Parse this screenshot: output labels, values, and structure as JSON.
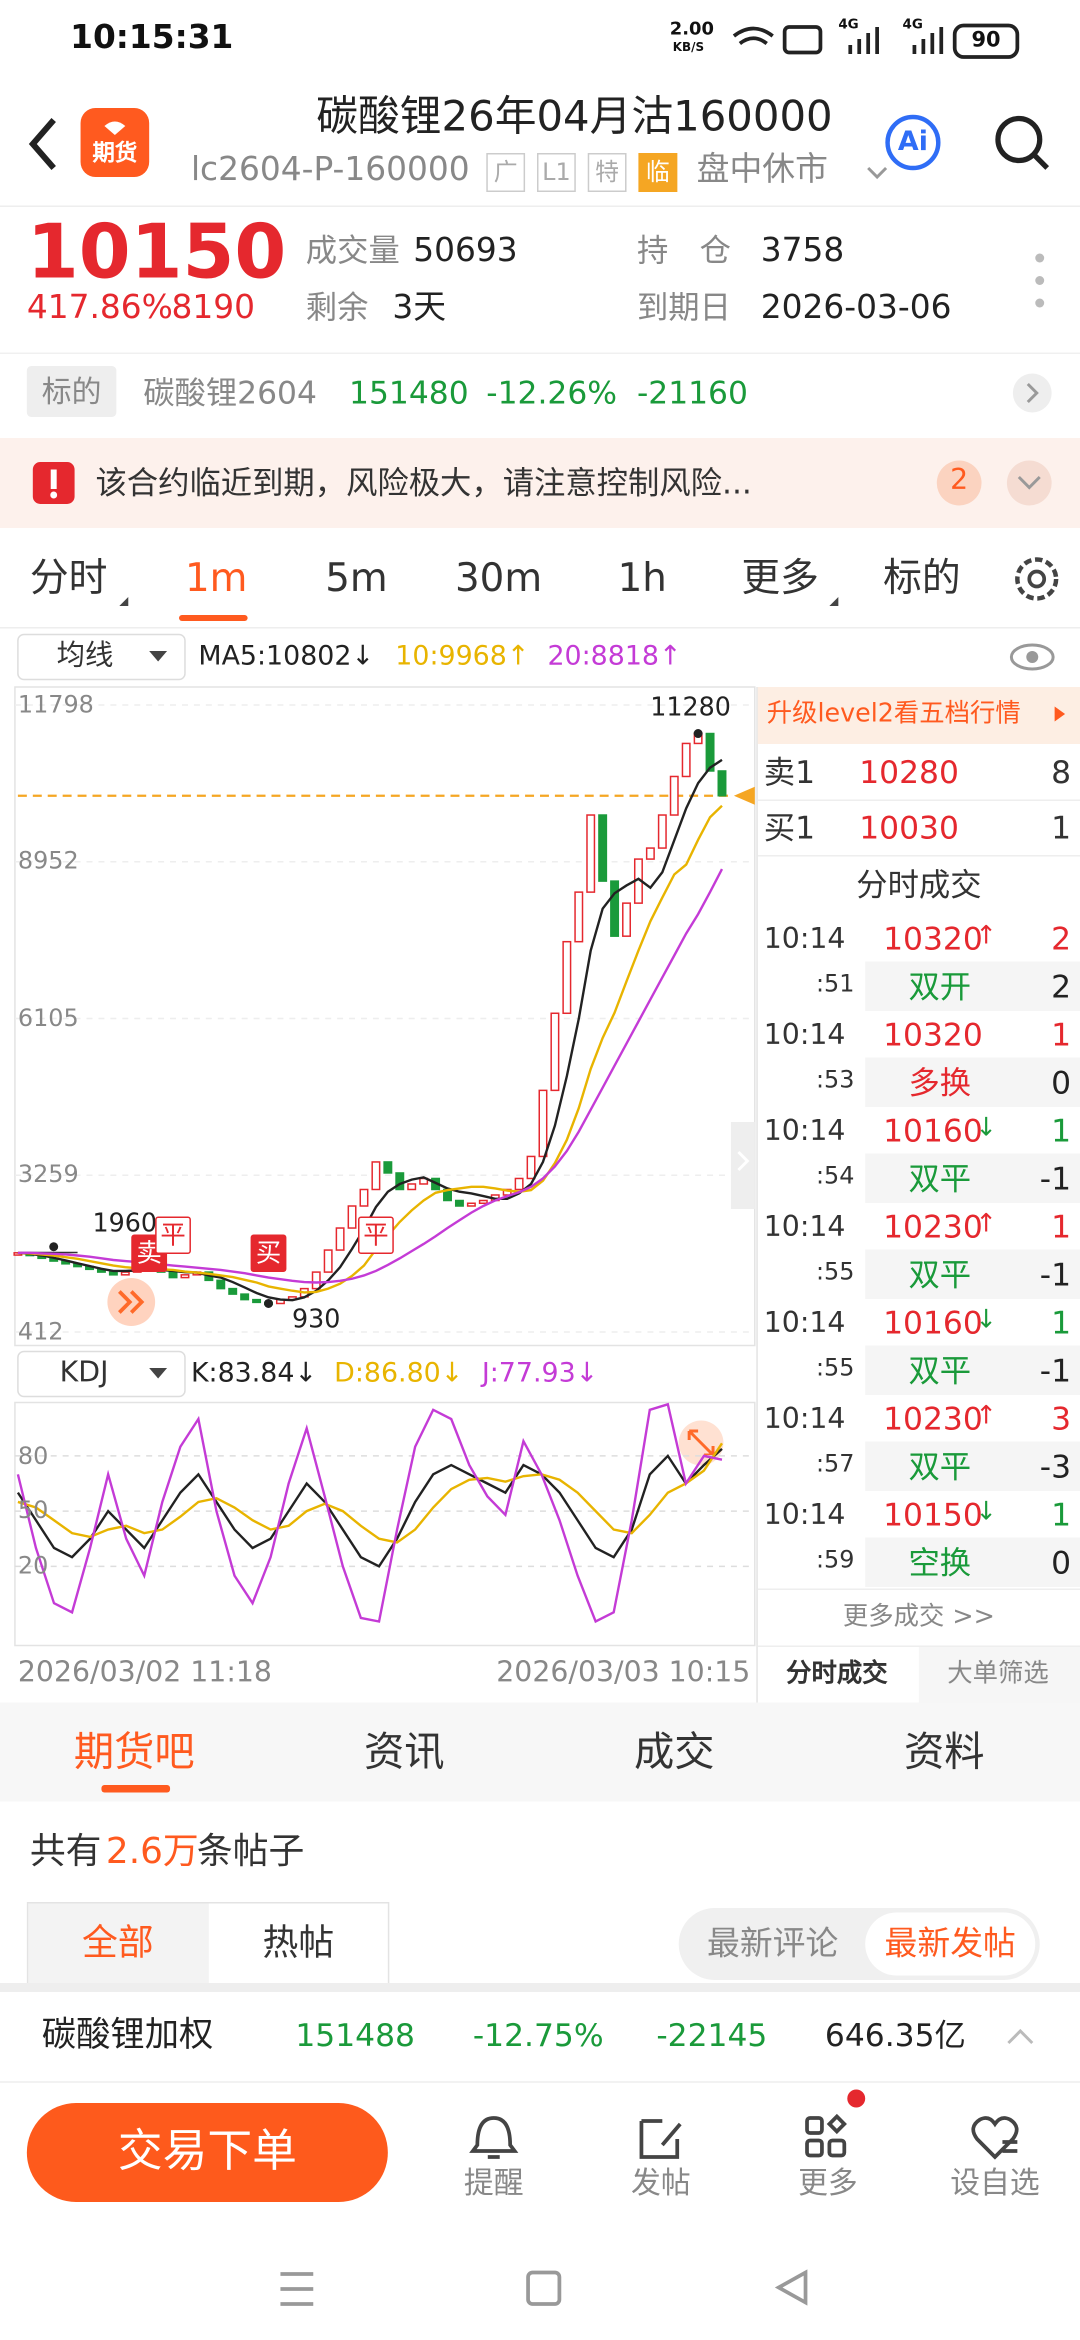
{
  "status_bar": {
    "time": "10:15:31",
    "net_speed": "2.00",
    "net_unit": "KB/S",
    "signal_1": "4G",
    "signal_2": "4G",
    "battery": "90"
  },
  "header": {
    "logo": "期货",
    "title": "碳酸锂26年04月沽160000",
    "code": "lc2604-P-160000",
    "tags": [
      "广",
      "L1",
      "特",
      "临"
    ],
    "tag_highlight": 3,
    "market_status": "盘中休市",
    "ai": "Ai"
  },
  "quote": {
    "price": "10150",
    "change_pct": "417.86%",
    "change": "8190",
    "stats": [
      {
        "label": "成交量",
        "value": "50693"
      },
      {
        "label": "持　仓",
        "value": "3758"
      },
      {
        "label": "剩余",
        "value": "3天"
      },
      {
        "label": "到期日",
        "value": "2026-03-06"
      }
    ]
  },
  "underlying": {
    "label": "标的",
    "name": "碳酸锂2604",
    "price": "151480",
    "change_pct": "-12.26%",
    "change": "-21160"
  },
  "alert": {
    "text": "该合约临近到期，风险极大，请注意控制风险...",
    "count": "2"
  },
  "period_tabs": {
    "items": [
      "分时",
      "1m",
      "5m",
      "30m",
      "1h",
      "更多",
      "标的"
    ],
    "active": 1
  },
  "indicators": {
    "main": "均线",
    "main_values": [
      "MA5:10802↓",
      "10:9968↑",
      "20:8818↑"
    ],
    "sub": "KDJ",
    "sub_values": [
      "K:83.84↓",
      "D:86.80↓",
      "J:77.93↓"
    ]
  },
  "chart_data": [
    {
      "type": "line",
      "ylim": [
        412,
        11798
      ],
      "yticks": [
        11798,
        8952,
        6105,
        3259,
        412
      ],
      "grid": true,
      "reference_line": 10150,
      "series": [
        {
          "color": "#e5282e",
          "style": "candles",
          "values": [
            1850,
            1800,
            1750,
            1700,
            1650,
            1600,
            1550,
            1500,
            1450,
            1500,
            1550,
            1600,
            1500,
            1400,
            1450,
            1500,
            1350,
            1200,
            1100,
            1000,
            950,
            930,
            1000,
            1050,
            1200,
            1500,
            1900,
            2300,
            2700,
            3000,
            3500,
            3300,
            3000,
            3100,
            3200,
            3000,
            2800,
            2700,
            2750,
            2800,
            2900,
            3000,
            3200,
            3600,
            4800,
            6200,
            7500,
            8400,
            9800,
            8600,
            7600,
            8200,
            9000,
            9200,
            9800,
            10500,
            11100,
            11280,
            10600,
            10150
          ]
        },
        {
          "color": "#222222",
          "values": [
            1850,
            1830,
            1800,
            1760,
            1710,
            1660,
            1610,
            1560,
            1520,
            1520,
            1530,
            1540,
            1540,
            1520,
            1500,
            1490,
            1440,
            1400,
            1320,
            1220,
            1120,
            1040,
            1000,
            990,
            1040,
            1160,
            1350,
            1590,
            1920,
            2280,
            2680,
            2960,
            3100,
            3180,
            3220,
            3120,
            3020,
            2960,
            2930,
            2880,
            2830,
            2830,
            2930,
            3100,
            3500,
            4160,
            5060,
            6100,
            7340,
            8100,
            8380,
            8520,
            8640,
            8480,
            8760,
            9340,
            9920,
            10380,
            10660,
            10802
          ]
        },
        {
          "color": "#e8b400",
          "values": [
            1850,
            1840,
            1820,
            1800,
            1770,
            1740,
            1700,
            1660,
            1620,
            1590,
            1570,
            1550,
            1550,
            1540,
            1510,
            1490,
            1470,
            1440,
            1410,
            1360,
            1310,
            1240,
            1200,
            1160,
            1130,
            1140,
            1200,
            1290,
            1430,
            1620,
            1910,
            2160,
            2410,
            2620,
            2800,
            2940,
            2990,
            3020,
            3050,
            3050,
            3020,
            2980,
            2960,
            2990,
            3160,
            3480,
            3900,
            4480,
            5190,
            5750,
            6210,
            6780,
            7340,
            7870,
            8300,
            8720,
            8900,
            9350,
            9760,
            9968
          ]
        },
        {
          "color": "#c43bd6",
          "values": [
            1850,
            1850,
            1840,
            1830,
            1820,
            1800,
            1780,
            1750,
            1720,
            1700,
            1680,
            1660,
            1640,
            1620,
            1600,
            1580,
            1560,
            1540,
            1510,
            1480,
            1440,
            1400,
            1370,
            1340,
            1320,
            1310,
            1320,
            1340,
            1380,
            1440,
            1520,
            1630,
            1750,
            1880,
            2010,
            2150,
            2300,
            2440,
            2580,
            2700,
            2800,
            2880,
            2950,
            3050,
            3200,
            3420,
            3700,
            4050,
            4450,
            4850,
            5250,
            5650,
            6050,
            6450,
            6850,
            7250,
            7650,
            8000,
            8400,
            8818
          ]
        }
      ],
      "annotations": [
        {
          "text": "11280",
          "index": 57,
          "value": 11280,
          "position": "above"
        },
        {
          "text": "1960",
          "index": 3,
          "value": 1960,
          "position": "right"
        },
        {
          "text": "930",
          "index": 21,
          "value": 930,
          "position": "below"
        }
      ],
      "markers": [
        {
          "text": "卖",
          "index": 11,
          "style": "solid"
        },
        {
          "text": "平",
          "index": 13,
          "style": "outline"
        },
        {
          "text": "买",
          "index": 21,
          "style": "solid"
        },
        {
          "text": "平",
          "index": 30,
          "style": "outline"
        }
      ]
    },
    {
      "type": "line",
      "ylim": [
        -23,
        109
      ],
      "yticks": [
        80,
        50,
        20
      ],
      "grid": true,
      "series": [
        {
          "color": "#222222",
          "values": [
            60,
            45,
            30,
            25,
            35,
            50,
            40,
            30,
            45,
            60,
            70,
            55,
            40,
            30,
            35,
            50,
            65,
            55,
            40,
            25,
            20,
            35,
            55,
            70,
            75,
            70,
            65,
            60,
            75,
            70,
            60,
            45,
            30,
            25,
            40,
            70,
            80,
            65,
            75,
            83.84
          ]
        },
        {
          "color": "#e8b400",
          "values": [
            55,
            52,
            45,
            38,
            36,
            40,
            42,
            38,
            40,
            47,
            55,
            57,
            52,
            45,
            40,
            42,
            50,
            54,
            50,
            42,
            35,
            33,
            40,
            52,
            62,
            67,
            68,
            66,
            69,
            70,
            67,
            60,
            50,
            40,
            38,
            48,
            60,
            65,
            72,
            86.8
          ]
        },
        {
          "color": "#c43bd6",
          "values": [
            70,
            30,
            0,
            -5,
            30,
            70,
            35,
            15,
            55,
            85,
            100,
            50,
            15,
            0,
            25,
            65,
            95,
            58,
            20,
            -8,
            -10,
            40,
            85,
            105,
            100,
            75,
            58,
            48,
            88,
            70,
            45,
            15,
            -10,
            -5,
            45,
            105,
            108,
            65,
            80,
            77.93
          ]
        }
      ]
    }
  ],
  "x_range": [
    "2026/03/02 11:18",
    "2026/03/03 10:15"
  ],
  "order_book": {
    "banner": "升级level2看五档行情",
    "levels": [
      {
        "side": "卖1",
        "price": "10280",
        "volume": "8"
      },
      {
        "side": "买1",
        "price": "10030",
        "volume": "1"
      }
    ],
    "trades_title": "分时成交",
    "trades": [
      {
        "time": "10:14",
        "sec": ":51",
        "price": "10320",
        "arrow": "↑",
        "volume": "2",
        "kind": "双开",
        "oi_change": "2"
      },
      {
        "time": "10:14",
        "sec": ":53",
        "price": "10320",
        "volume": "1",
        "kind": "多换",
        "oi_change": "0"
      },
      {
        "time": "10:14",
        "sec": ":54",
        "price": "10160",
        "arrow": "↓",
        "volume": "1",
        "kind": "双平",
        "oi_change": "-1"
      },
      {
        "time": "10:14",
        "sec": ":55",
        "price": "10230",
        "arrow": "↑",
        "volume": "1",
        "kind": "双平",
        "oi_change": "-1"
      },
      {
        "time": "10:14",
        "sec": ":55",
        "price": "10160",
        "arrow": "↓",
        "volume": "1",
        "kind": "双平",
        "oi_change": "-1"
      },
      {
        "time": "10:14",
        "sec": ":57",
        "price": "10230",
        "arrow": "↑",
        "volume": "3",
        "kind": "双平",
        "oi_change": "-3"
      },
      {
        "time": "10:14",
        "sec": ":59",
        "price": "10150",
        "arrow": "↓",
        "volume": "1",
        "kind": "空换",
        "oi_change": "0"
      }
    ],
    "more": "更多成交 >>",
    "tabs": [
      "分时成交",
      "大单筛选"
    ]
  },
  "content_tabs": {
    "items": [
      "期货吧",
      "资讯",
      "成交",
      "资料"
    ],
    "active": 0
  },
  "posts": {
    "prefix": "共有",
    "count": "2.6万",
    "suffix": "条帖子",
    "filters": [
      "全部",
      "热帖"
    ],
    "sort": [
      "最新评论",
      "最新发帖"
    ]
  },
  "ticker": {
    "name": "碳酸锂加权",
    "price": "151488",
    "change_pct": "-12.75%",
    "change": "-22145",
    "turnover": "646.35亿"
  },
  "actions": {
    "trade": "交易下单",
    "items": [
      "提醒",
      "发帖",
      "更多",
      "设自选"
    ]
  }
}
